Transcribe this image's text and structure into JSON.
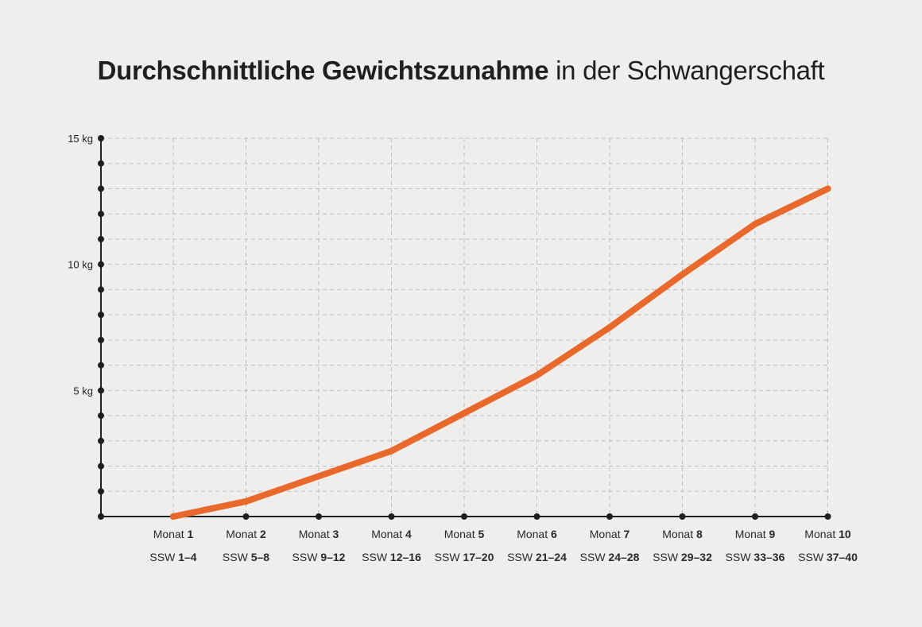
{
  "title": {
    "bold_part": "Durchschnittliche Gewichtszunahme",
    "regular_part": " in der Schwangerschaft"
  },
  "colors": {
    "background": "#efeeec",
    "line": "#e8692b",
    "axis": "#1f1f1f",
    "grid": "#bdbdbd"
  },
  "chart_data": {
    "type": "line",
    "title": "Durchschnittliche Gewichtszunahme in der Schwangerschaft",
    "xlabel": "",
    "ylabel": "",
    "ylim": [
      0,
      15
    ],
    "y_ticks": [
      {
        "value": 5,
        "label": "5 kg"
      },
      {
        "value": 10,
        "label": "10 kg"
      },
      {
        "value": 15,
        "label": "15 kg"
      }
    ],
    "y_minor_step": 1,
    "grid": true,
    "categories": [
      {
        "month_prefix": "Monat",
        "month_num": "1",
        "ssw_prefix": "SSW",
        "ssw_range": "1–4"
      },
      {
        "month_prefix": "Monat",
        "month_num": "2",
        "ssw_prefix": "SSW",
        "ssw_range": "5–8"
      },
      {
        "month_prefix": "Monat",
        "month_num": "3",
        "ssw_prefix": "SSW",
        "ssw_range": "9–12"
      },
      {
        "month_prefix": "Monat",
        "month_num": "4",
        "ssw_prefix": "SSW",
        "ssw_range": "12–16"
      },
      {
        "month_prefix": "Monat",
        "month_num": "5",
        "ssw_prefix": "SSW",
        "ssw_range": "17–20"
      },
      {
        "month_prefix": "Monat",
        "month_num": "6",
        "ssw_prefix": "SSW",
        "ssw_range": "21–24"
      },
      {
        "month_prefix": "Monat",
        "month_num": "7",
        "ssw_prefix": "SSW",
        "ssw_range": "24–28"
      },
      {
        "month_prefix": "Monat",
        "month_num": "8",
        "ssw_prefix": "SSW",
        "ssw_range": "29–32"
      },
      {
        "month_prefix": "Monat",
        "month_num": "9",
        "ssw_prefix": "SSW",
        "ssw_range": "33–36"
      },
      {
        "month_prefix": "Monat",
        "month_num": "10",
        "ssw_prefix": "SSW",
        "ssw_range": "37–40"
      }
    ],
    "values": [
      0,
      0.6,
      1.6,
      2.6,
      4.1,
      5.6,
      7.5,
      9.6,
      11.6,
      13.0
    ]
  }
}
